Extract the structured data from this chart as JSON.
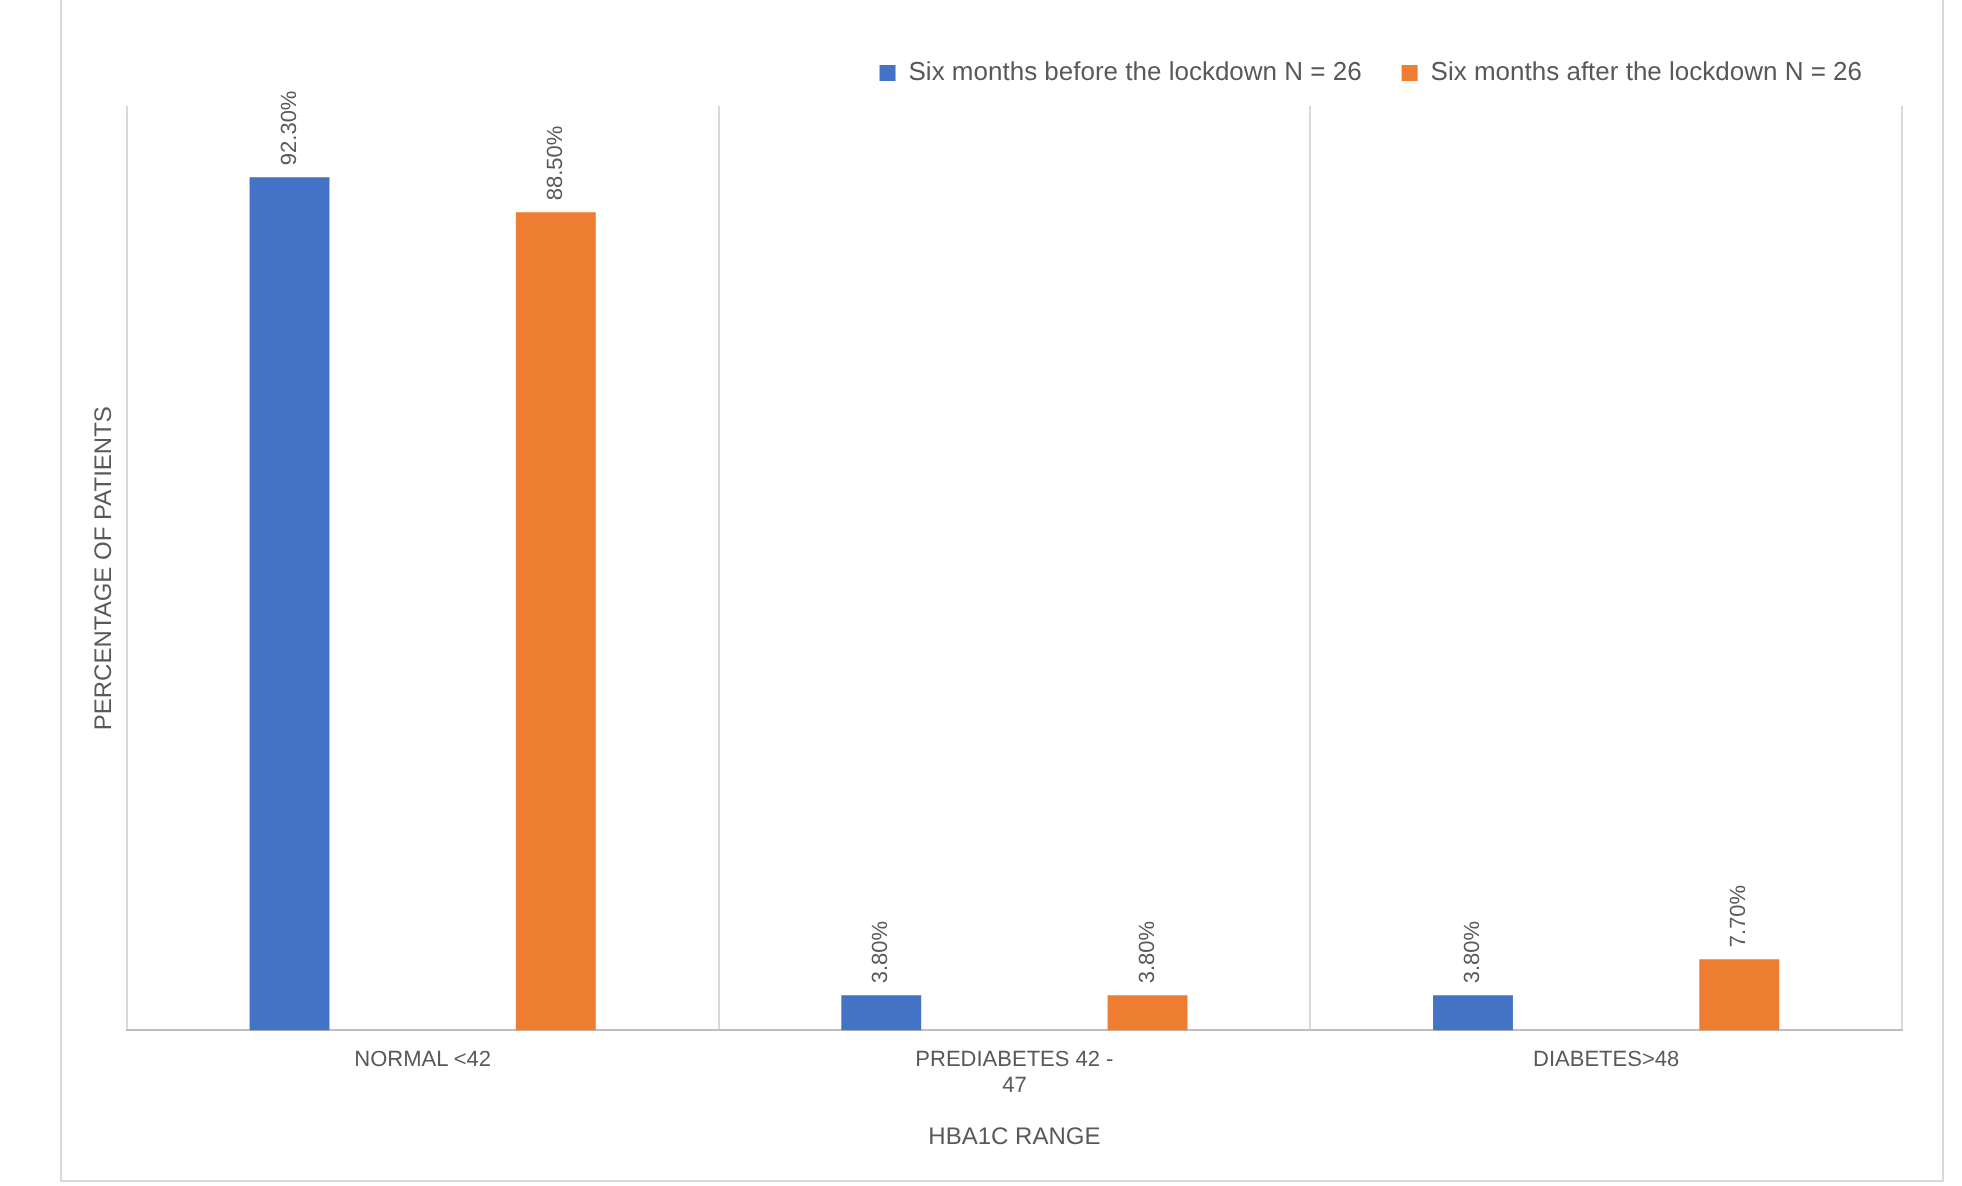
{
  "chart_data": {
    "type": "bar",
    "xlabel": "HBA1C RANGE",
    "ylabel": "PERCENTAGE OF PATIENTS",
    "categories": [
      "NORMAL <42",
      "PREDIABETES 42 - 47",
      "DIABETES>48"
    ],
    "series": [
      {
        "name": "Six months before the lockdown N = 26",
        "color": "#4472c4",
        "values": [
          92.3,
          3.8,
          3.8
        ],
        "value_labels": [
          "92.30%",
          "3.80%",
          "3.80%"
        ]
      },
      {
        "name": "Six months after the lockdown N = 26",
        "color": "#ed7d31",
        "values": [
          88.5,
          3.8,
          7.7
        ],
        "value_labels": [
          "88.50%",
          "3.80%",
          "7.70%"
        ]
      }
    ],
    "grid": "x",
    "legend": "top"
  }
}
